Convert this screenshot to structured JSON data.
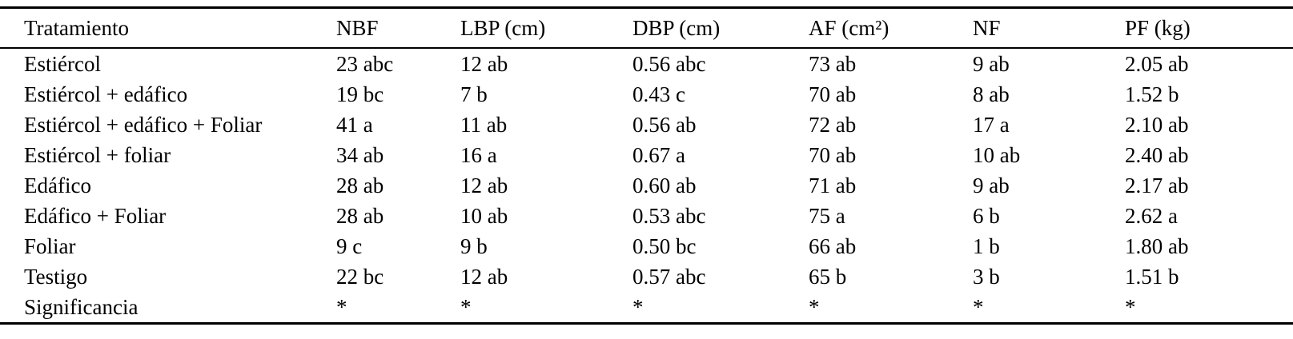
{
  "table": {
    "headers": [
      "Tratamiento",
      "NBF",
      "LBP (cm)",
      "DBP (cm)",
      "AF (cm²)",
      "NF",
      "PF (kg)"
    ],
    "rows": [
      [
        "Estiércol",
        "23 abc",
        "12 ab",
        "0.56 abc",
        "73 ab",
        "9 ab",
        "2.05 ab"
      ],
      [
        "Estiércol + edáfico",
        "19 bc",
        "7 b",
        "0.43 c",
        "70 ab",
        "8 ab",
        "1.52 b"
      ],
      [
        "Estiércol + edáfico + Foliar",
        "41 a",
        "11 ab",
        "0.56 ab",
        "72 ab",
        "17 a",
        "2.10 ab"
      ],
      [
        "Estiércol + foliar",
        "34 ab",
        "16 a",
        "0.67 a",
        "70 ab",
        "10 ab",
        "2.40 ab"
      ],
      [
        "Edáfico",
        "28 ab",
        "12 ab",
        "0.60 ab",
        "71 ab",
        "9 ab",
        "2.17 ab"
      ],
      [
        "Edáfico + Foliar",
        "28 ab",
        "10 ab",
        "0.53 abc",
        "75 a",
        "6 b",
        "2.62 a"
      ],
      [
        "Foliar",
        "9 c",
        "9 b",
        "0.50 bc",
        "66 ab",
        "1 b",
        "1.80 ab"
      ],
      [
        "Testigo",
        "22 bc",
        "12 ab",
        "0.57 abc",
        "65 b",
        "3 b",
        "1.51 b"
      ],
      [
        "Significancia",
        "*",
        "*",
        "*",
        "*",
        "*",
        "*"
      ]
    ]
  }
}
